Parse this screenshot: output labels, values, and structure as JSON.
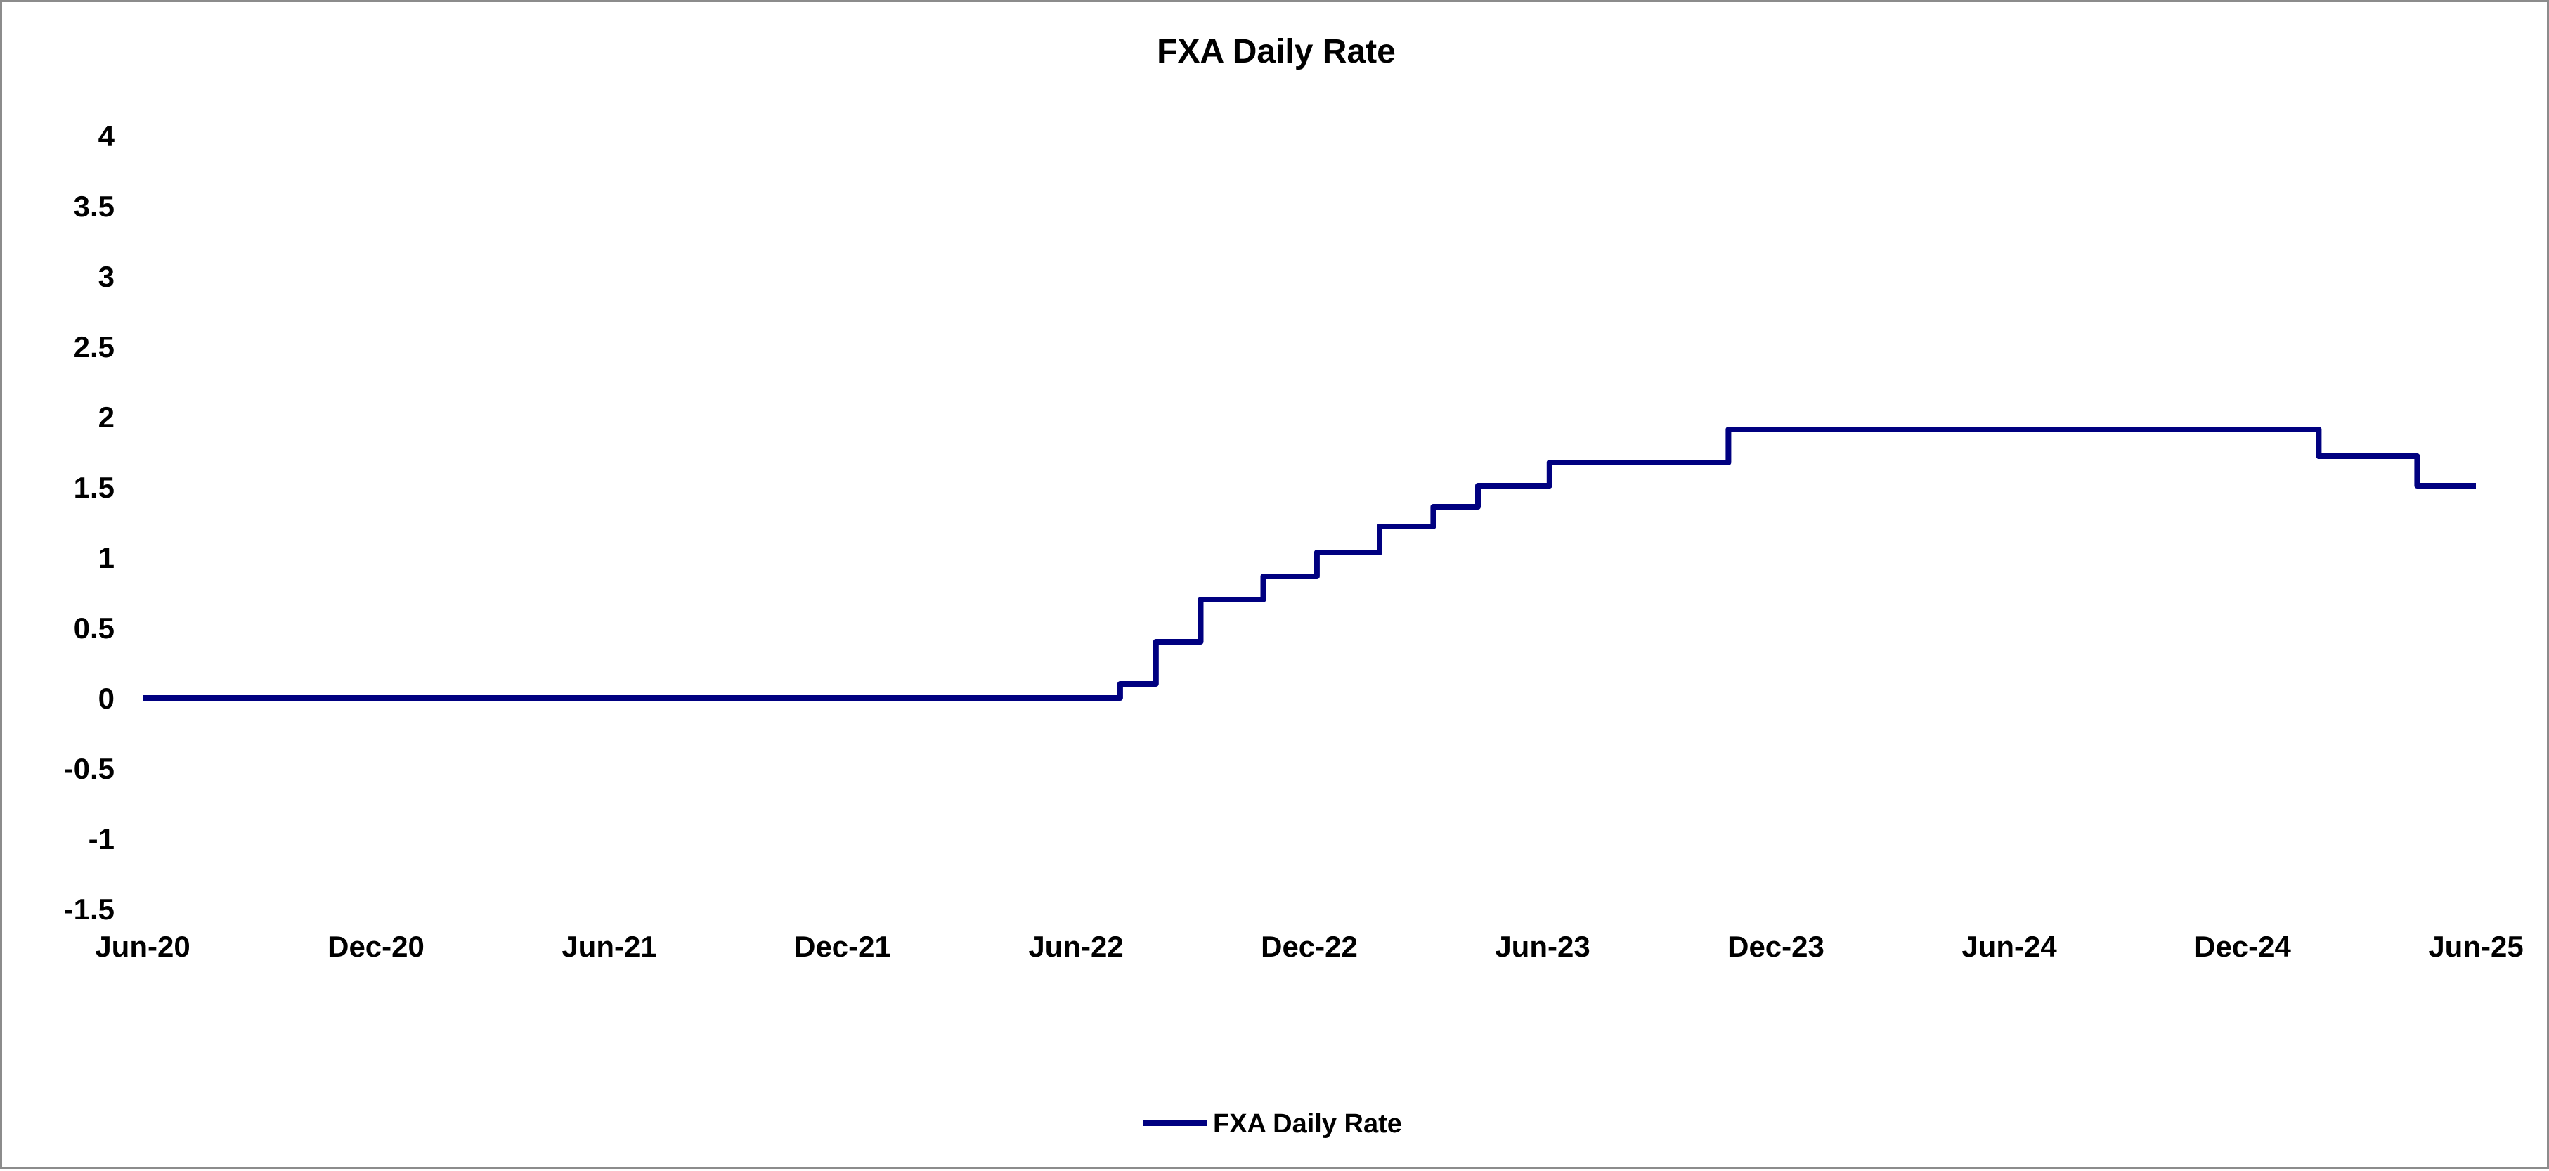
{
  "chart_data": {
    "type": "line",
    "title": "FXA Daily Rate",
    "xlabel": "",
    "ylabel": "",
    "x_tick_labels": [
      "Jun-20",
      "Dec-20",
      "Jun-21",
      "Dec-21",
      "Jun-22",
      "Dec-22",
      "Jun-23",
      "Dec-23",
      "Jun-24",
      "Dec-24",
      "Jun-25"
    ],
    "x_range": [
      "2020-06-01",
      "2025-06-01"
    ],
    "y_tick_labels": [
      "4",
      "3.5",
      "3",
      "2.5",
      "2",
      "1.5",
      "1",
      "0.5",
      "0",
      "-0.5",
      "-1",
      "-1.5"
    ],
    "ylim": [
      -1.5,
      4
    ],
    "grid": false,
    "legend_position": "bottom",
    "colors": {
      "series_line": "#000080",
      "frame_border": "#8c8c8c"
    },
    "series": [
      {
        "name": "FXA Daily Rate",
        "step": true,
        "x": [
          "2020-06-01",
          "2022-07-06",
          "2022-08-03",
          "2022-09-07",
          "2022-10-26",
          "2022-12-07",
          "2023-01-25",
          "2023-03-08",
          "2023-04-12",
          "2023-06-07",
          "2023-10-25",
          "2025-01-29",
          "2025-04-16",
          "2025-06-01"
        ],
        "values": [
          0,
          0.1,
          0.4,
          0.7,
          0.865,
          1.035,
          1.22,
          1.36,
          1.51,
          1.675,
          1.91,
          1.72,
          1.51,
          1.51
        ]
      }
    ]
  }
}
